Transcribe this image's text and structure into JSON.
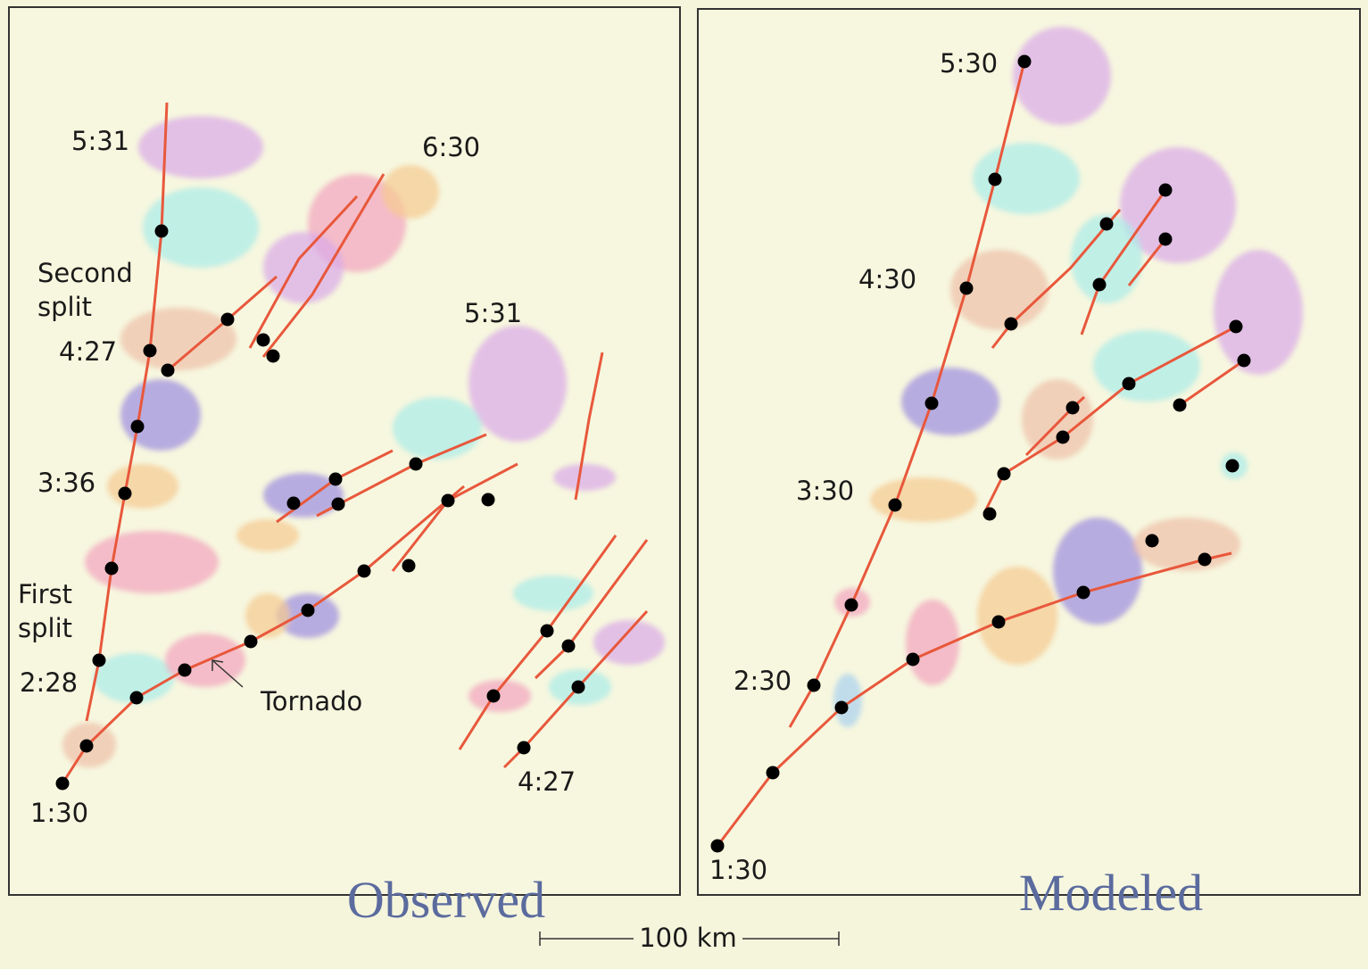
{
  "panels": [
    {
      "title": "Observed",
      "labels": [
        "5:31",
        "6:30",
        "4:27",
        "5:31",
        "3:36",
        "2:28",
        "Tornado",
        "1:30",
        "4:27"
      ],
      "splits": [
        [
          "Second",
          "split"
        ],
        [
          "First",
          "split"
        ]
      ]
    },
    {
      "title": "Modeled",
      "labels": [
        "5:30",
        "4:30",
        "3:30",
        "2:30",
        "1:30"
      ]
    }
  ],
  "scale": "100 km"
}
